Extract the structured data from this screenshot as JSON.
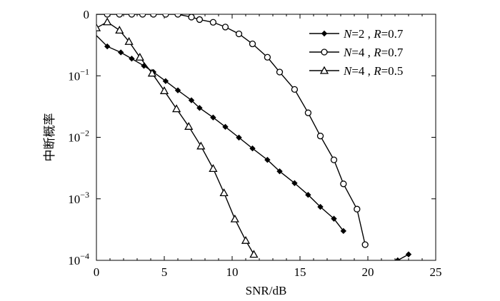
{
  "chart_data": {
    "type": "line",
    "xlabel": "SNR/dB",
    "ylabel": "中断概率",
    "xlim": [
      0,
      25
    ],
    "ylim": [
      0.0001,
      1
    ],
    "yscale": "log",
    "x_ticks": [
      "0",
      "5",
      "10",
      "15",
      "20",
      "25"
    ],
    "y_ticks": [
      {
        "base": "0",
        "exp": ""
      },
      {
        "base": "10",
        "exp": "−1"
      },
      {
        "base": "10",
        "exp": "−2"
      },
      {
        "base": "10",
        "exp": "−3"
      },
      {
        "base": "10",
        "exp": "−4"
      }
    ],
    "legend_position": "top-right",
    "series": [
      {
        "name": "N=2, R=0.7",
        "legend": {
          "v1": "N",
          "t1": "=2 , ",
          "v2": "R",
          "t2": "=0.7"
        },
        "marker": "diamond",
        "x": [
          0,
          0.8,
          1.8,
          2.6,
          3.5,
          4.2,
          5.1,
          6.0,
          7.0,
          7.6,
          8.6,
          9.5,
          10.5,
          11.5,
          12.6,
          13.5,
          14.6,
          15.6,
          16.5,
          17.5,
          18.2,
          22.2,
          23.0
        ],
        "y": [
          0.45,
          0.3,
          0.24,
          0.19,
          0.145,
          0.115,
          0.082,
          0.058,
          0.04,
          0.03,
          0.021,
          0.0148,
          0.0099,
          0.0066,
          0.0043,
          0.0028,
          0.0018,
          0.00116,
          0.00074,
          0.000475,
          0.0003,
          0.0001,
          0.000125
        ]
      },
      {
        "name": "N=4, R=0.7",
        "legend": {
          "v1": "N",
          "t1": "=4 , ",
          "v2": "R",
          "t2": "=0.7"
        },
        "marker": "circle",
        "x": [
          0,
          0.8,
          1.7,
          2.6,
          3.4,
          4.2,
          5.1,
          6.0,
          7.0,
          7.6,
          8.6,
          9.5,
          10.5,
          11.5,
          12.6,
          13.5,
          14.6,
          15.6,
          16.5,
          17.5,
          18.2,
          19.2,
          19.8
        ],
        "y": [
          1,
          1,
          1,
          1,
          1,
          1,
          1,
          1,
          0.9,
          0.82,
          0.74,
          0.62,
          0.48,
          0.33,
          0.2,
          0.115,
          0.06,
          0.025,
          0.0105,
          0.0043,
          0.00175,
          0.00068,
          0.00018
        ]
      },
      {
        "name": "N=4, R=0.5",
        "legend": {
          "v1": "N",
          "t1": "=4 , ",
          "v2": "R",
          "t2": "=0.5"
        },
        "marker": "triangle",
        "x": [
          0,
          0.8,
          1.7,
          2.4,
          3.2,
          4.1,
          5.0,
          5.9,
          6.8,
          7.7,
          8.6,
          9.4,
          10.2,
          11.0,
          11.6
        ],
        "y": [
          0.6,
          0.75,
          0.55,
          0.36,
          0.2,
          0.11,
          0.057,
          0.029,
          0.015,
          0.0072,
          0.0031,
          0.00125,
          0.00047,
          0.00021,
          0.000125
        ]
      }
    ]
  }
}
